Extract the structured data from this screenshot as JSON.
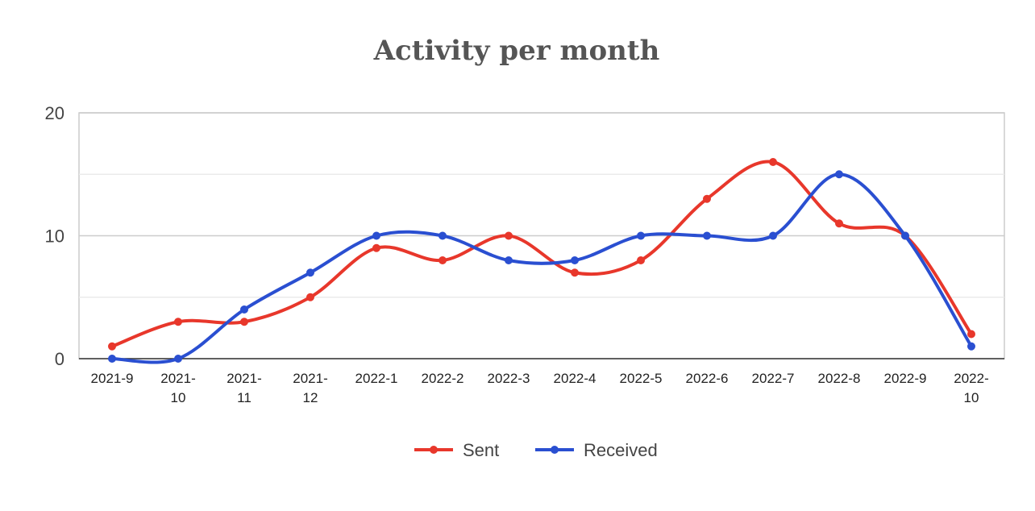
{
  "chart_data": {
    "type": "line",
    "title": "Activity per month",
    "xlabel": "",
    "ylabel": "",
    "ylim": [
      0,
      20
    ],
    "yticks": [
      0,
      10,
      20
    ],
    "minor_gridlines": [
      5,
      15
    ],
    "grid": true,
    "smooth": true,
    "legend_position": "bottom",
    "categories": [
      "2021-9",
      "2021-10",
      "2021-11",
      "2021-12",
      "2022-1",
      "2022-2",
      "2022-3",
      "2022-4",
      "2022-5",
      "2022-6",
      "2022-7",
      "2022-8",
      "2022-9",
      "2022-10"
    ],
    "series": [
      {
        "name": "Sent",
        "color": "#e8372b",
        "values": [
          1,
          3,
          3,
          5,
          9,
          8,
          10,
          7,
          8,
          13,
          16,
          11,
          10,
          2
        ]
      },
      {
        "name": "Received",
        "color": "#2a4fd1",
        "values": [
          0,
          0,
          4,
          7,
          10,
          10,
          8,
          8,
          10,
          10,
          10,
          15,
          10,
          1
        ]
      }
    ]
  }
}
